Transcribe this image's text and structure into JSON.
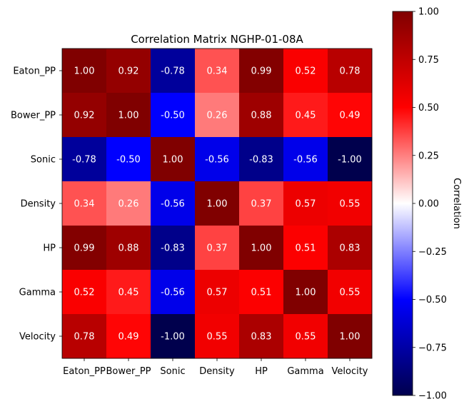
{
  "chart_data": {
    "type": "heatmap",
    "title": "Correlation Matrix NGHP-01-08A",
    "x_labels": [
      "Eaton_PP",
      "Bower_PP",
      "Sonic",
      "Density",
      "HP",
      "Gamma",
      "Velocity"
    ],
    "y_labels": [
      "Eaton_PP",
      "Bower_PP",
      "Sonic",
      "Density",
      "HP",
      "Gamma",
      "Velocity"
    ],
    "values": [
      [
        1.0,
        0.92,
        -0.78,
        0.34,
        0.99,
        0.52,
        0.78
      ],
      [
        0.92,
        1.0,
        -0.5,
        0.26,
        0.88,
        0.45,
        0.49
      ],
      [
        -0.78,
        -0.5,
        1.0,
        -0.56,
        -0.83,
        -0.56,
        -1.0
      ],
      [
        0.34,
        0.26,
        -0.56,
        1.0,
        0.37,
        0.57,
        0.55
      ],
      [
        0.99,
        0.88,
        -0.83,
        0.37,
        1.0,
        0.51,
        0.83
      ],
      [
        0.52,
        0.45,
        -0.56,
        0.57,
        0.51,
        1.0,
        0.55
      ],
      [
        0.78,
        0.49,
        -1.0,
        0.55,
        0.83,
        0.55,
        1.0
      ]
    ],
    "value_format": "2 decimals",
    "colormap": "seismic",
    "vmin": -1.0,
    "vmax": 1.0,
    "colorbar": {
      "label": "Correlation",
      "ticks": [
        "1.00",
        "0.75",
        "0.50",
        "0.25",
        "0.00",
        "−0.25",
        "−0.50",
        "−0.75",
        "−1.00"
      ]
    },
    "annotation_color": "#ffffff"
  }
}
